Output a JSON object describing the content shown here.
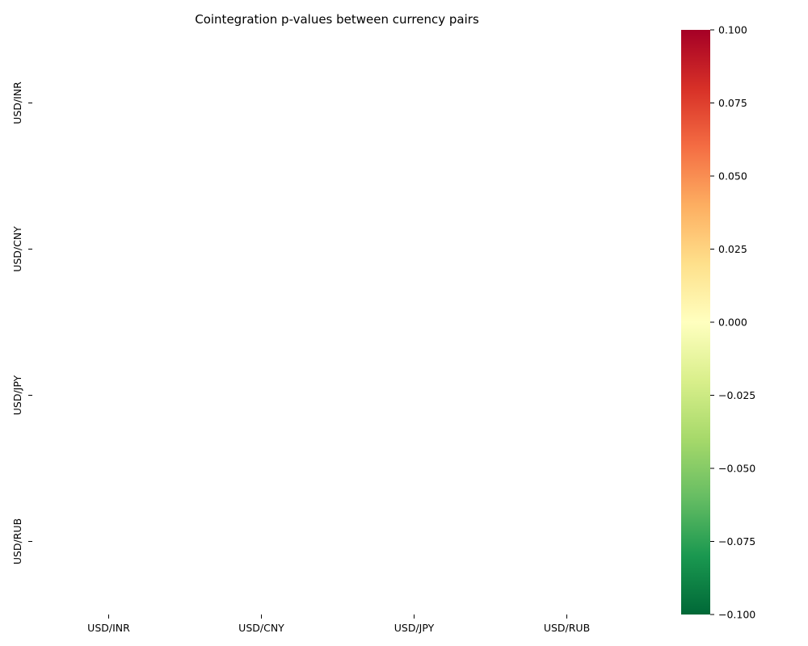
{
  "chart_data": {
    "type": "heatmap",
    "title": "Cointegration p-values between currency pairs",
    "xlabel": "",
    "ylabel": "",
    "x_categories": [
      "USD/INR",
      "USD/CNY",
      "USD/JPY",
      "USD/RUB"
    ],
    "y_categories": [
      "USD/INR",
      "USD/CNY",
      "USD/JPY",
      "USD/RUB"
    ],
    "values": [
      [
        null,
        null,
        null,
        null
      ],
      [
        null,
        null,
        null,
        null
      ],
      [
        null,
        null,
        null,
        null
      ],
      [
        null,
        null,
        null,
        null
      ]
    ],
    "colormap": "RdYlGn_r",
    "colorbar": {
      "range": [
        -0.1,
        0.1
      ],
      "ticks": [
        "0.100",
        "0.075",
        "0.050",
        "0.025",
        "0.000",
        "−0.025",
        "−0.050",
        "−0.075",
        "−0.100"
      ],
      "tick_values": [
        0.1,
        0.075,
        0.05,
        0.025,
        0.0,
        -0.025,
        -0.05,
        -0.075,
        -0.1
      ],
      "colors": [
        "#006837",
        "#1a9850",
        "#66bd63",
        "#a6d96a",
        "#d9ef8b",
        "#ffffbf",
        "#fee08b",
        "#fdae61",
        "#f46d43",
        "#d73027",
        "#a50026"
      ]
    },
    "grid": false,
    "legend": "colorbar-right"
  }
}
